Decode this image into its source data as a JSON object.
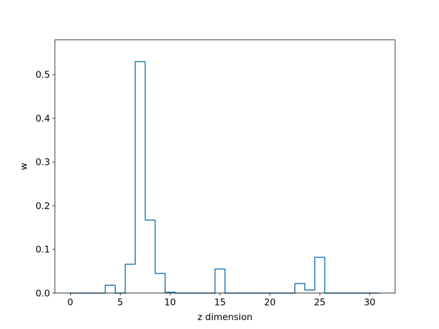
{
  "chart_data": {
    "type": "line",
    "step": "mid",
    "title": "",
    "xlabel": "z dimension",
    "ylabel": "w",
    "xlim": [
      -1.55,
      32.55
    ],
    "ylim": [
      0,
      0.58
    ],
    "xticks": [
      0,
      5,
      10,
      15,
      20,
      25,
      30
    ],
    "yticks": [
      0.0,
      0.1,
      0.2,
      0.3,
      0.4,
      0.5
    ],
    "ytick_labels": [
      "0.0",
      "0.1",
      "0.2",
      "0.3",
      "0.4",
      "0.5"
    ],
    "grid": false,
    "legend": "none",
    "series": [
      {
        "color": "#1f77b4",
        "x": [
          0,
          1,
          2,
          3,
          4,
          5,
          6,
          7,
          8,
          9,
          10,
          11,
          12,
          13,
          14,
          15,
          16,
          17,
          18,
          19,
          20,
          21,
          22,
          23,
          24,
          25,
          26,
          27,
          28,
          29,
          30,
          31
        ],
        "values": [
          0,
          0,
          0,
          0,
          0.018,
          0,
          0.066,
          0.53,
          0.167,
          0.045,
          0.002,
          0,
          0,
          0,
          0,
          0.055,
          0,
          0,
          0,
          0,
          0,
          0,
          0,
          0.022,
          0.007,
          0.082,
          0,
          0,
          0,
          0,
          0,
          0
        ]
      }
    ]
  }
}
